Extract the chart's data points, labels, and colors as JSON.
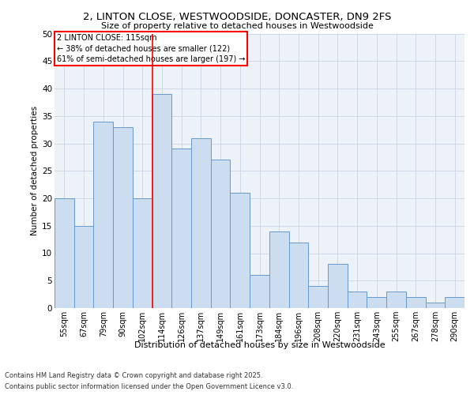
{
  "title_line1": "2, LINTON CLOSE, WESTWOODSIDE, DONCASTER, DN9 2FS",
  "title_line2": "Size of property relative to detached houses in Westwoodside",
  "xlabel": "Distribution of detached houses by size in Westwoodside",
  "ylabel": "Number of detached properties",
  "categories": [
    "55sqm",
    "67sqm",
    "79sqm",
    "90sqm",
    "102sqm",
    "114sqm",
    "126sqm",
    "137sqm",
    "149sqm",
    "161sqm",
    "173sqm",
    "184sqm",
    "196sqm",
    "208sqm",
    "220sqm",
    "231sqm",
    "243sqm",
    "255sqm",
    "267sqm",
    "278sqm",
    "290sqm"
  ],
  "values": [
    20,
    15,
    34,
    33,
    20,
    39,
    29,
    31,
    27,
    21,
    6,
    14,
    12,
    4,
    8,
    3,
    2,
    3,
    2,
    1,
    2
  ],
  "bar_color": "#ccddf0",
  "bar_edge_color": "#6699cc",
  "vline_color": "red",
  "vline_x": 4.5,
  "annotation_line1": "2 LINTON CLOSE: 115sqm",
  "annotation_line2": "← 38% of detached houses are smaller (122)",
  "annotation_line3": "61% of semi-detached houses are larger (197) →",
  "ylim_max": 50,
  "yticks": [
    0,
    5,
    10,
    15,
    20,
    25,
    30,
    35,
    40,
    45,
    50
  ],
  "bg_color": "#edf2f9",
  "grid_color": "#c8d4e4",
  "footer1": "Contains HM Land Registry data © Crown copyright and database right 2025.",
  "footer2": "Contains public sector information licensed under the Open Government Licence v3.0."
}
